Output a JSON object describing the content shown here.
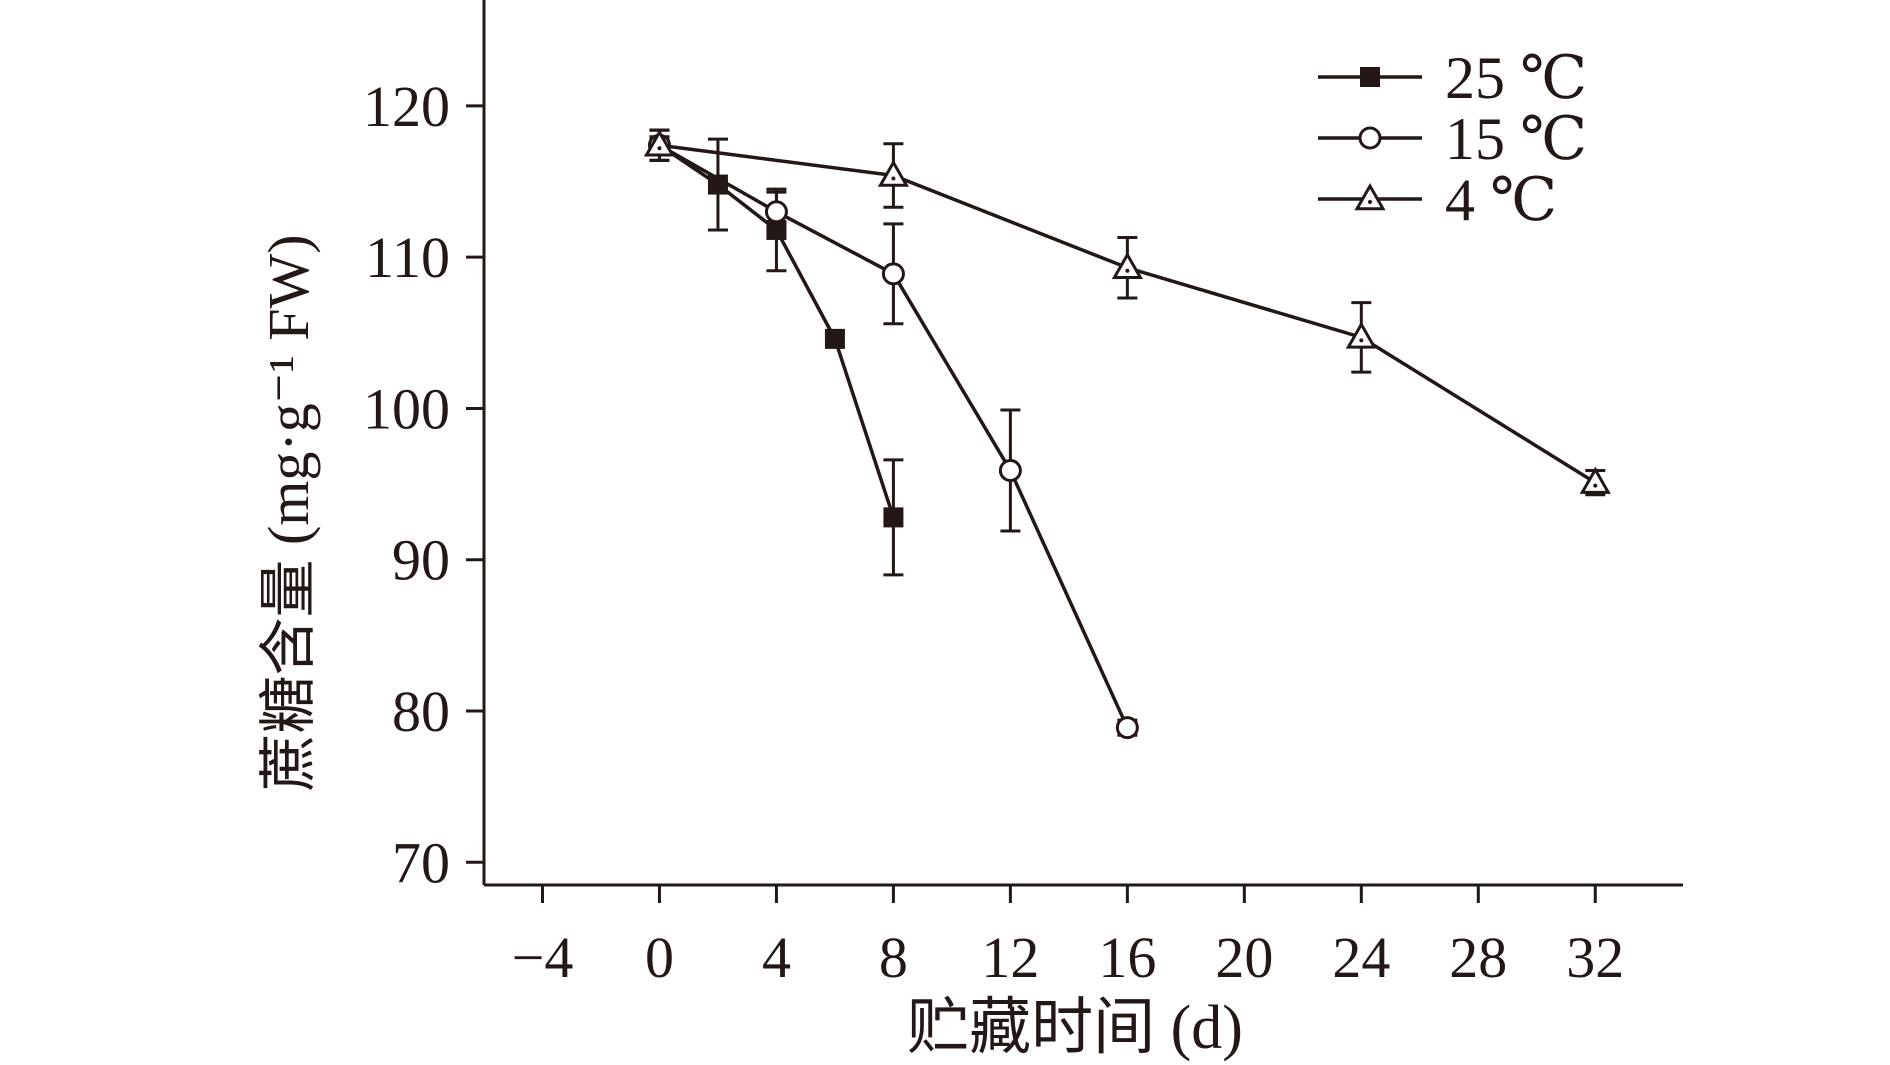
{
  "chart_data": {
    "type": "line",
    "xlabel": "贮藏时间 (d)",
    "ylabel": "蔗糖含量 (mg·g⁻¹ FW)",
    "xlim": [
      -6,
      35
    ],
    "ylim": [
      68.5,
      127
    ],
    "xticks": [
      -4,
      0,
      4,
      8,
      12,
      16,
      20,
      24,
      28,
      32
    ],
    "xtick_labels": [
      "−4",
      "0",
      "4",
      "8",
      "12",
      "16",
      "20",
      "24",
      "28",
      "32"
    ],
    "yticks": [
      70,
      80,
      90,
      100,
      110,
      120
    ],
    "ytick_labels": [
      "70",
      "80",
      "90",
      "100",
      "110",
      "120"
    ],
    "legend_position": "top-right",
    "grid": false,
    "series": [
      {
        "name": "25 ℃",
        "marker": "filled-square",
        "x": [
          0,
          2,
          4,
          6,
          8
        ],
        "y": [
          117.4,
          114.8,
          111.8,
          104.6,
          92.8
        ],
        "err": [
          1.0,
          3.0,
          2.7,
          0,
          3.8
        ]
      },
      {
        "name": "15 ℃",
        "marker": "open-circle",
        "x": [
          0,
          4,
          8,
          12,
          16
        ],
        "y": [
          117.4,
          113.0,
          108.9,
          95.9,
          78.9
        ],
        "err": [
          1.0,
          1.3,
          3.3,
          4.0,
          0.5
        ]
      },
      {
        "name": "4 ℃",
        "marker": "open-triangle",
        "x": [
          0,
          8,
          16,
          24,
          32
        ],
        "y": [
          117.4,
          115.4,
          109.3,
          104.7,
          95.1
        ],
        "err": [
          1.0,
          2.1,
          2.0,
          2.3,
          0.8
        ]
      }
    ]
  },
  "colors": {
    "ink": "#231815",
    "background": "#ffffff"
  }
}
